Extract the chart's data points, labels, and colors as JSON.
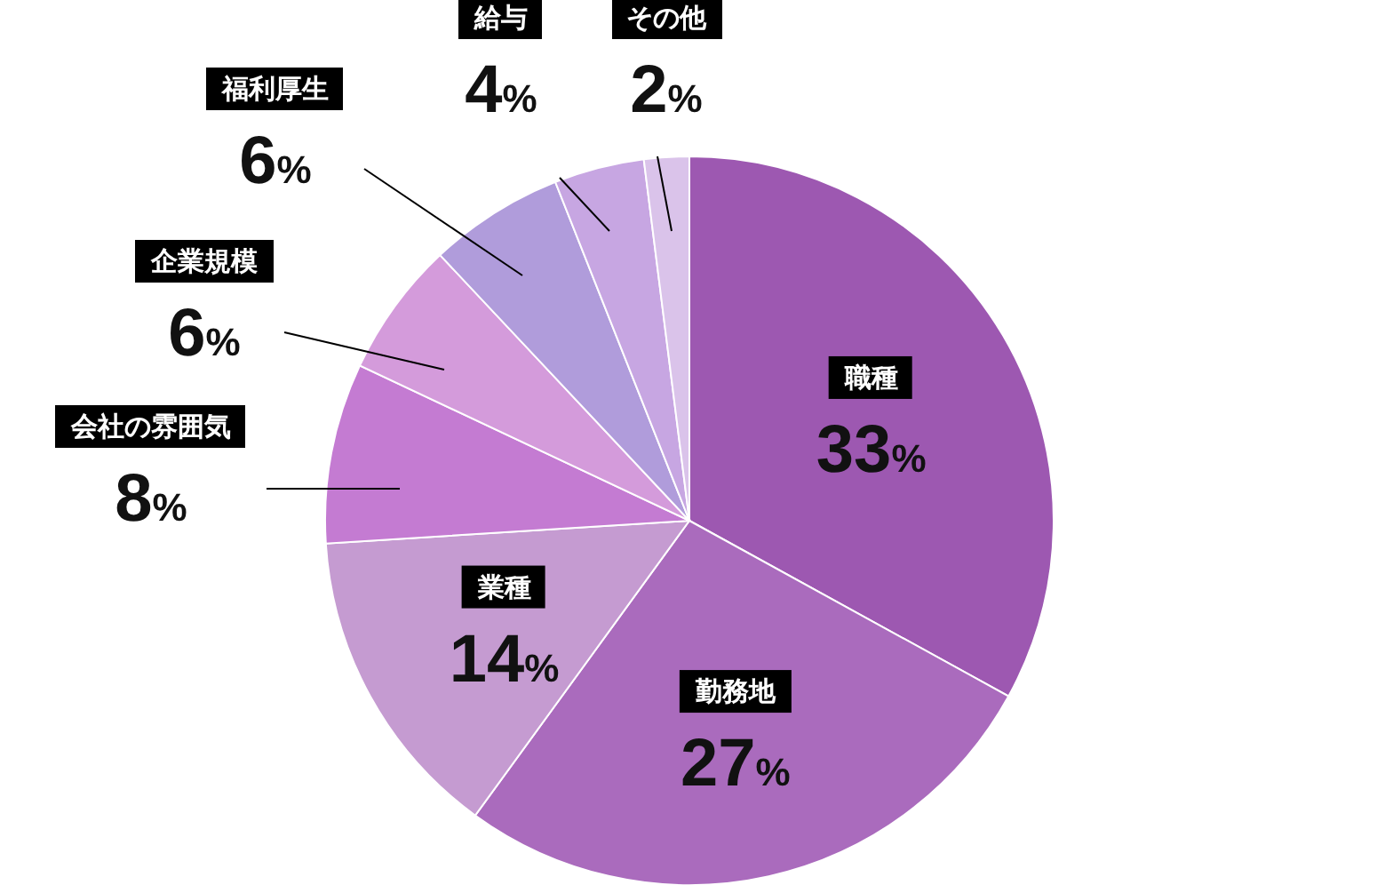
{
  "chart_data": {
    "type": "pie",
    "categories": [
      "職種",
      "勤務地",
      "業種",
      "会社の雰囲気",
      "企業規模",
      "福利厚生",
      "給与",
      "その他"
    ],
    "values": [
      33,
      27,
      14,
      8,
      6,
      6,
      4,
      2
    ],
    "colors": [
      "#9d58b1",
      "#aa6bbd",
      "#c59bd1",
      "#c47bd2",
      "#d49bdb",
      "#b09cdb",
      "#c7a6e2",
      "#dac3ea"
    ],
    "value_labels": [
      "33%",
      "27%",
      "14%",
      "8%",
      "6%",
      "6%",
      "4%",
      "2%"
    ]
  }
}
